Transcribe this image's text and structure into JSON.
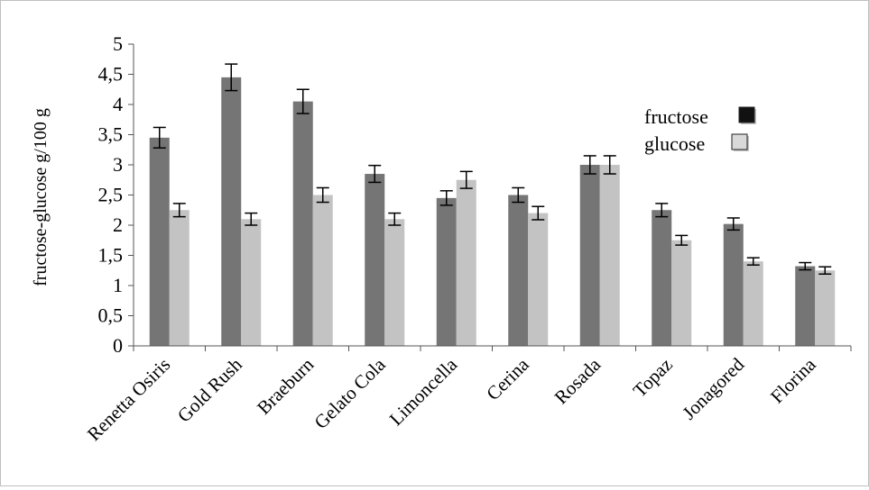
{
  "chart_data": {
    "type": "bar",
    "title": "",
    "xlabel": "",
    "ylabel": "fructose-glucose g/100 g",
    "ylim": [
      0,
      5
    ],
    "yticks": [
      "0",
      "0,5",
      "1",
      "1,5",
      "2",
      "2,5",
      "3",
      "3,5",
      "4",
      "4,5",
      "5"
    ],
    "grid": false,
    "legend_position": "right",
    "categories": [
      "Renetta Osiris",
      "Gold Rush",
      "Braeburn",
      "Gelato Cola",
      "Limoncella",
      "Cerina",
      "Rosada",
      "Topaz",
      "Jonagored",
      "Florina"
    ],
    "series": [
      {
        "name": "fructose",
        "color": "#757575",
        "legend_color": "#111111",
        "values": [
          3.45,
          4.45,
          4.05,
          2.85,
          2.45,
          2.5,
          3.0,
          2.25,
          2.02,
          1.32
        ],
        "errors": [
          0.17,
          0.22,
          0.2,
          0.14,
          0.12,
          0.12,
          0.15,
          0.11,
          0.1,
          0.06
        ]
      },
      {
        "name": "glucose",
        "color": "#c3c3c3",
        "legend_color": "#d9d9d9",
        "values": [
          2.25,
          2.1,
          2.5,
          2.1,
          2.75,
          2.2,
          3.0,
          1.75,
          1.4,
          1.25
        ],
        "errors": [
          0.11,
          0.1,
          0.12,
          0.1,
          0.14,
          0.11,
          0.15,
          0.08,
          0.06,
          0.06
        ]
      }
    ]
  }
}
